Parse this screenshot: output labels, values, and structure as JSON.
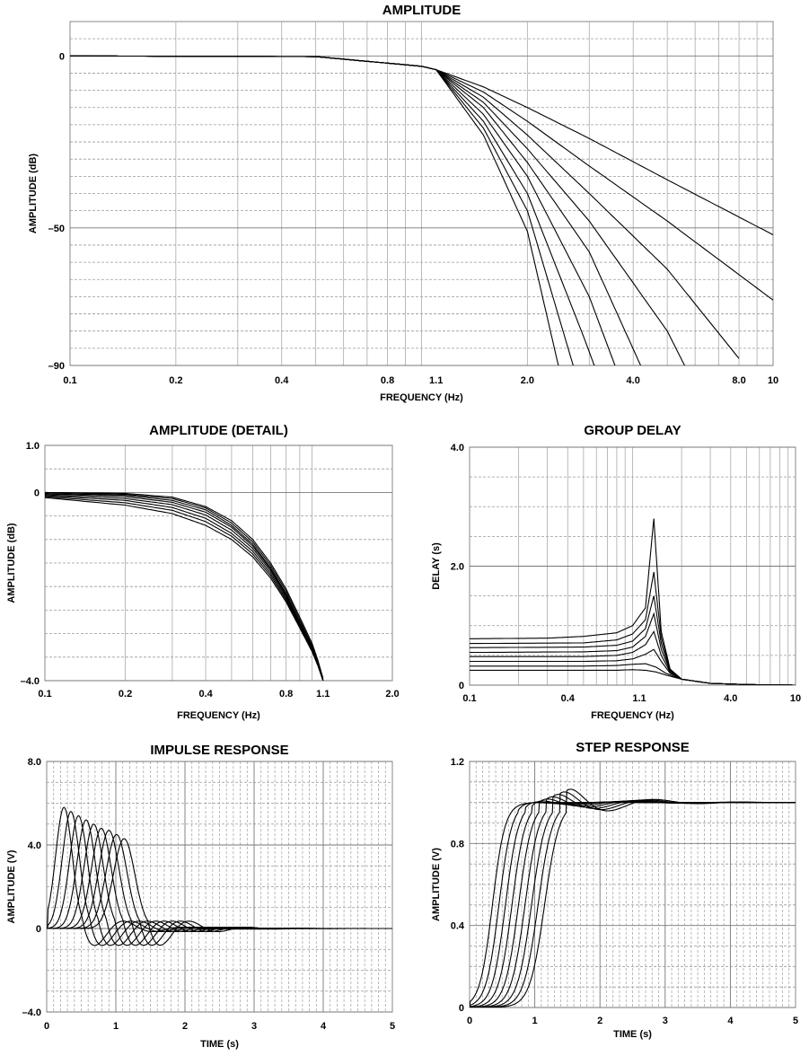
{
  "chart_data": [
    {
      "id": "amp",
      "type": "line",
      "title": "AMPLITUDE",
      "xlabel": "FREQUENCY (Hz)",
      "ylabel": "AMPLITUDE (dB)",
      "xscale": "log",
      "xlim": [
        0.1,
        10
      ],
      "ylim": [
        -90,
        10
      ],
      "xticks": [
        {
          "v": 0.1,
          "label": "0.1"
        },
        {
          "v": 0.2,
          "label": "0.2"
        },
        {
          "v": 0.4,
          "label": "0.4"
        },
        {
          "v": 0.8,
          "label": "0.8"
        },
        {
          "v": 1.1,
          "label": "1.1"
        },
        {
          "v": 2.0,
          "label": "2.0"
        },
        {
          "v": 4.0,
          "label": "4.0"
        },
        {
          "v": 8.0,
          "label": "8.0"
        },
        {
          "v": 10,
          "label": "10"
        }
      ],
      "yticks": [
        {
          "v": 0,
          "label": "0"
        },
        {
          "v": -50,
          "label": "–50"
        },
        {
          "v": -90,
          "label": "–90"
        }
      ],
      "series": [
        {
          "x": [
            0.1,
            0.5,
            1.0,
            1.1,
            1.5,
            2.0,
            3.0,
            5.0,
            10
          ],
          "y": [
            0,
            -0.2,
            -3,
            -4,
            -9,
            -15,
            -24,
            -36,
            -52
          ]
        },
        {
          "x": [
            0.1,
            0.5,
            1.0,
            1.1,
            1.5,
            2.0,
            3.0,
            5.0,
            10
          ],
          "y": [
            0,
            -0.2,
            -3,
            -4,
            -10.5,
            -19,
            -32,
            -48,
            -71
          ]
        },
        {
          "x": [
            0.1,
            0.5,
            1.0,
            1.1,
            1.5,
            2.0,
            3.0,
            5.0,
            8.0
          ],
          "y": [
            0,
            -0.2,
            -3,
            -4,
            -12,
            -23,
            -40,
            -62,
            -88
          ]
        },
        {
          "x": [
            0.1,
            0.5,
            1.0,
            1.1,
            1.5,
            2.0,
            3.0,
            5.0,
            5.6
          ],
          "y": [
            0,
            -0.2,
            -3,
            -4,
            -13.5,
            -27,
            -48,
            -80,
            -90
          ]
        },
        {
          "x": [
            0.1,
            0.5,
            1.0,
            1.1,
            1.5,
            2.0,
            3.0,
            4.2
          ],
          "y": [
            0,
            -0.2,
            -3,
            -4,
            -15,
            -31,
            -57,
            -90
          ]
        },
        {
          "x": [
            0.1,
            0.5,
            1.0,
            1.1,
            1.5,
            2.0,
            3.0,
            3.55
          ],
          "y": [
            0,
            -0.2,
            -3,
            -4,
            -17,
            -35,
            -70,
            -90
          ]
        },
        {
          "x": [
            0.1,
            0.5,
            1.0,
            1.1,
            1.5,
            2.0,
            2.9,
            3.1
          ],
          "y": [
            0,
            -0.2,
            -3,
            -4,
            -19,
            -40,
            -82,
            -90
          ]
        },
        {
          "x": [
            0.1,
            0.5,
            1.0,
            1.1,
            1.5,
            2.0,
            2.7
          ],
          "y": [
            0,
            -0.2,
            -3,
            -4,
            -21,
            -45,
            -90
          ]
        },
        {
          "x": [
            0.1,
            0.5,
            1.0,
            1.1,
            1.5,
            2.0,
            2.45
          ],
          "y": [
            0,
            -0.2,
            -3,
            -4,
            -23,
            -51,
            -90
          ]
        }
      ]
    },
    {
      "id": "detail",
      "type": "line",
      "title": "AMPLITUDE (DETAIL)",
      "xlabel": "FREQUENCY (Hz)",
      "ylabel": "AMPLITUDE (dB)",
      "xscale": "log",
      "xlim": [
        0.1,
        2.0
      ],
      "ylim": [
        -4.0,
        1.0
      ],
      "xticks": [
        {
          "v": 0.1,
          "label": "0.1"
        },
        {
          "v": 0.2,
          "label": "0.2"
        },
        {
          "v": 0.4,
          "label": "0.4"
        },
        {
          "v": 0.8,
          "label": "0.8"
        },
        {
          "v": 1.1,
          "label": "1.1"
        },
        {
          "v": 2.0,
          "label": "2.0"
        }
      ],
      "yticks": [
        {
          "v": 1.0,
          "label": "1.0"
        },
        {
          "v": 0,
          "label": "0"
        },
        {
          "v": -4.0,
          "label": "–4.0"
        }
      ],
      "series": [
        {
          "x": [
            0.1,
            0.2,
            0.3,
            0.4,
            0.5,
            0.6,
            0.7,
            0.8,
            0.9,
            1.0,
            1.05,
            1.1
          ],
          "y": [
            0,
            -0.02,
            -0.1,
            -0.3,
            -0.6,
            -1.0,
            -1.5,
            -2.05,
            -2.65,
            -3.2,
            -3.55,
            -3.95
          ]
        },
        {
          "x": [
            0.1,
            0.2,
            0.3,
            0.4,
            0.5,
            0.6,
            0.7,
            0.8,
            0.9,
            1.0,
            1.05,
            1.1
          ],
          "y": [
            0,
            -0.04,
            -0.13,
            -0.33,
            -0.65,
            -1.05,
            -1.55,
            -2.1,
            -2.7,
            -3.25,
            -3.6,
            -3.98
          ]
        },
        {
          "x": [
            0.1,
            0.2,
            0.3,
            0.4,
            0.5,
            0.6,
            0.7,
            0.8,
            0.9,
            1.0,
            1.05,
            1.1
          ],
          "y": [
            -0.02,
            -0.06,
            -0.17,
            -0.37,
            -0.7,
            -1.1,
            -1.6,
            -2.15,
            -2.75,
            -3.28,
            -3.62,
            -4.0
          ]
        },
        {
          "x": [
            0.1,
            0.2,
            0.3,
            0.4,
            0.5,
            0.6,
            0.7,
            0.8,
            0.9,
            1.0,
            1.05,
            1.1
          ],
          "y": [
            -0.03,
            -0.09,
            -0.21,
            -0.42,
            -0.74,
            -1.14,
            -1.63,
            -2.18,
            -2.78,
            -3.3,
            -3.63,
            -4.0
          ]
        },
        {
          "x": [
            0.1,
            0.2,
            0.3,
            0.4,
            0.5,
            0.6,
            0.7,
            0.8,
            0.9,
            1.0,
            1.05,
            1.1
          ],
          "y": [
            -0.05,
            -0.13,
            -0.26,
            -0.48,
            -0.8,
            -1.19,
            -1.67,
            -2.21,
            -2.8,
            -3.32,
            -3.64,
            -4.0
          ]
        },
        {
          "x": [
            0.1,
            0.2,
            0.3,
            0.4,
            0.5,
            0.6,
            0.7,
            0.8,
            0.9,
            1.0,
            1.05,
            1.1
          ],
          "y": [
            -0.07,
            -0.17,
            -0.32,
            -0.55,
            -0.87,
            -1.25,
            -1.72,
            -2.25,
            -2.83,
            -3.34,
            -3.65,
            -4.0
          ]
        },
        {
          "x": [
            0.1,
            0.2,
            0.3,
            0.4,
            0.5,
            0.6,
            0.7,
            0.8,
            0.9,
            1.0,
            1.05,
            1.1
          ],
          "y": [
            -0.09,
            -0.22,
            -0.38,
            -0.62,
            -0.93,
            -1.31,
            -1.77,
            -2.29,
            -2.86,
            -3.36,
            -3.66,
            -4.0
          ]
        },
        {
          "x": [
            0.1,
            0.2,
            0.3,
            0.4,
            0.5,
            0.6,
            0.7,
            0.8,
            0.9,
            1.0,
            1.05,
            1.1
          ],
          "y": [
            -0.11,
            -0.27,
            -0.45,
            -0.7,
            -1.0,
            -1.37,
            -1.82,
            -2.33,
            -2.88,
            -3.38,
            -3.67,
            -4.0
          ]
        }
      ]
    },
    {
      "id": "delay",
      "type": "line",
      "title": "GROUP DELAY",
      "xlabel": "FREQUENCY (Hz)",
      "ylabel": "DELAY (s)",
      "xscale": "log",
      "xlim": [
        0.1,
        10
      ],
      "ylim": [
        0,
        4.0
      ],
      "xticks": [
        {
          "v": 0.1,
          "label": "0.1"
        },
        {
          "v": 0.4,
          "label": "0.4"
        },
        {
          "v": 1.1,
          "label": "1.1"
        },
        {
          "v": 4.0,
          "label": "4.0"
        },
        {
          "v": 10,
          "label": "10"
        }
      ],
      "yticks": [
        {
          "v": 4.0,
          "label": "4.0"
        },
        {
          "v": 2.0,
          "label": "2.0"
        },
        {
          "v": 0,
          "label": "0"
        }
      ],
      "series": [
        {
          "x": [
            0.1,
            0.5,
            0.8,
            1.0,
            1.2,
            1.4,
            1.6,
            2.0,
            3.0,
            5.0,
            10
          ],
          "y": [
            0.25,
            0.25,
            0.25,
            0.26,
            0.25,
            0.22,
            0.17,
            0.1,
            0.03,
            0.01,
            0
          ]
        },
        {
          "x": [
            0.1,
            0.5,
            0.8,
            1.0,
            1.2,
            1.4,
            1.6,
            2.0,
            3.0,
            5.0,
            10
          ],
          "y": [
            0.32,
            0.32,
            0.33,
            0.35,
            0.36,
            0.3,
            0.2,
            0.1,
            0.03,
            0.01,
            0
          ]
        },
        {
          "x": [
            0.1,
            0.5,
            0.8,
            1.0,
            1.2,
            1.35,
            1.5,
            1.7,
            2.0,
            3.0,
            5.0,
            10
          ],
          "y": [
            0.4,
            0.4,
            0.41,
            0.44,
            0.52,
            0.6,
            0.4,
            0.2,
            0.1,
            0.03,
            0.01,
            0
          ]
        },
        {
          "x": [
            0.1,
            0.5,
            0.8,
            1.0,
            1.2,
            1.35,
            1.5,
            1.7,
            2.0,
            3.0,
            5.0,
            10
          ],
          "y": [
            0.48,
            0.48,
            0.5,
            0.55,
            0.68,
            0.9,
            0.5,
            0.22,
            0.1,
            0.03,
            0.01,
            0
          ]
        },
        {
          "x": [
            0.1,
            0.5,
            0.8,
            1.0,
            1.2,
            1.35,
            1.5,
            1.7,
            2.0,
            3.0,
            5.0,
            10
          ],
          "y": [
            0.55,
            0.56,
            0.58,
            0.64,
            0.82,
            1.2,
            0.6,
            0.24,
            0.1,
            0.03,
            0.01,
            0
          ]
        },
        {
          "x": [
            0.1,
            0.5,
            0.8,
            1.0,
            1.2,
            1.35,
            1.5,
            1.7,
            2.0,
            3.0,
            5.0,
            10
          ],
          "y": [
            0.63,
            0.64,
            0.67,
            0.74,
            0.95,
            1.5,
            0.7,
            0.25,
            0.1,
            0.03,
            0.01,
            0
          ]
        },
        {
          "x": [
            0.1,
            0.5,
            0.8,
            1.0,
            1.2,
            1.35,
            1.5,
            1.7,
            2.0,
            3.0,
            5.0,
            10
          ],
          "y": [
            0.7,
            0.71,
            0.76,
            0.86,
            1.1,
            1.9,
            0.8,
            0.26,
            0.1,
            0.03,
            0.01,
            0
          ]
        },
        {
          "x": [
            0.1,
            0.3,
            0.5,
            0.8,
            1.0,
            1.2,
            1.35,
            1.5,
            1.7,
            2.0,
            3.0,
            5.0,
            10
          ],
          "y": [
            0.78,
            0.79,
            0.82,
            0.88,
            1.0,
            1.3,
            2.8,
            0.9,
            0.27,
            0.1,
            0.03,
            0.01,
            0
          ]
        }
      ]
    },
    {
      "id": "impulse",
      "type": "line",
      "title": "IMPULSE RESPONSE",
      "xlabel": "TIME (s)",
      "ylabel": "AMPLITUDE (V)",
      "xscale": "linear",
      "xlim": [
        0,
        5
      ],
      "ylim": [
        -4.0,
        8.0
      ],
      "xticks": [
        {
          "v": 0,
          "label": "0"
        },
        {
          "v": 1,
          "label": "1"
        },
        {
          "v": 2,
          "label": "2"
        },
        {
          "v": 3,
          "label": "3"
        },
        {
          "v": 4,
          "label": "4"
        },
        {
          "v": 5,
          "label": "5"
        }
      ],
      "yticks": [
        {
          "v": 8.0,
          "label": "8.0"
        },
        {
          "v": 4.0,
          "label": "4.0"
        },
        {
          "v": 0,
          "label": "0"
        },
        {
          "v": -4.0,
          "label": "–4.0"
        }
      ],
      "series": [
        {
          "peak_t": 0.25,
          "peak": 5.8
        },
        {
          "peak_t": 0.35,
          "peak": 5.6
        },
        {
          "peak_t": 0.46,
          "peak": 5.4
        },
        {
          "peak_t": 0.57,
          "peak": 5.2
        },
        {
          "peak_t": 0.68,
          "peak": 5.0
        },
        {
          "peak_t": 0.79,
          "peak": 4.8
        },
        {
          "peak_t": 0.9,
          "peak": 4.7
        },
        {
          "peak_t": 1.01,
          "peak": 4.5
        },
        {
          "peak_t": 1.12,
          "peak": 4.3
        }
      ]
    },
    {
      "id": "step",
      "type": "line",
      "title": "STEP RESPONSE",
      "xlabel": "TIME (s)",
      "ylabel": "AMPLITUDE (V)",
      "xscale": "linear",
      "xlim": [
        0,
        5
      ],
      "ylim": [
        0,
        1.2
      ],
      "xticks": [
        {
          "v": 0,
          "label": "0"
        },
        {
          "v": 1,
          "label": "1"
        },
        {
          "v": 2,
          "label": "2"
        },
        {
          "v": 3,
          "label": "3"
        },
        {
          "v": 4,
          "label": "4"
        },
        {
          "v": 5,
          "label": "5"
        }
      ],
      "yticks": [
        {
          "v": 1.2,
          "label": "1.2"
        },
        {
          "v": 0.8,
          "label": "0.8"
        },
        {
          "v": 0.4,
          "label": "0.4"
        },
        {
          "v": 0,
          "label": "0"
        }
      ],
      "series": [
        {
          "mid_t": 0.35,
          "overshoot": 0.0
        },
        {
          "mid_t": 0.45,
          "overshoot": 0.01
        },
        {
          "mid_t": 0.55,
          "overshoot": 0.02
        },
        {
          "mid_t": 0.65,
          "overshoot": 0.03
        },
        {
          "mid_t": 0.75,
          "overshoot": 0.045
        },
        {
          "mid_t": 0.85,
          "overshoot": 0.06
        },
        {
          "mid_t": 0.95,
          "overshoot": 0.075
        },
        {
          "mid_t": 1.05,
          "overshoot": 0.09
        },
        {
          "mid_t": 1.15,
          "overshoot": 0.105
        }
      ]
    }
  ]
}
